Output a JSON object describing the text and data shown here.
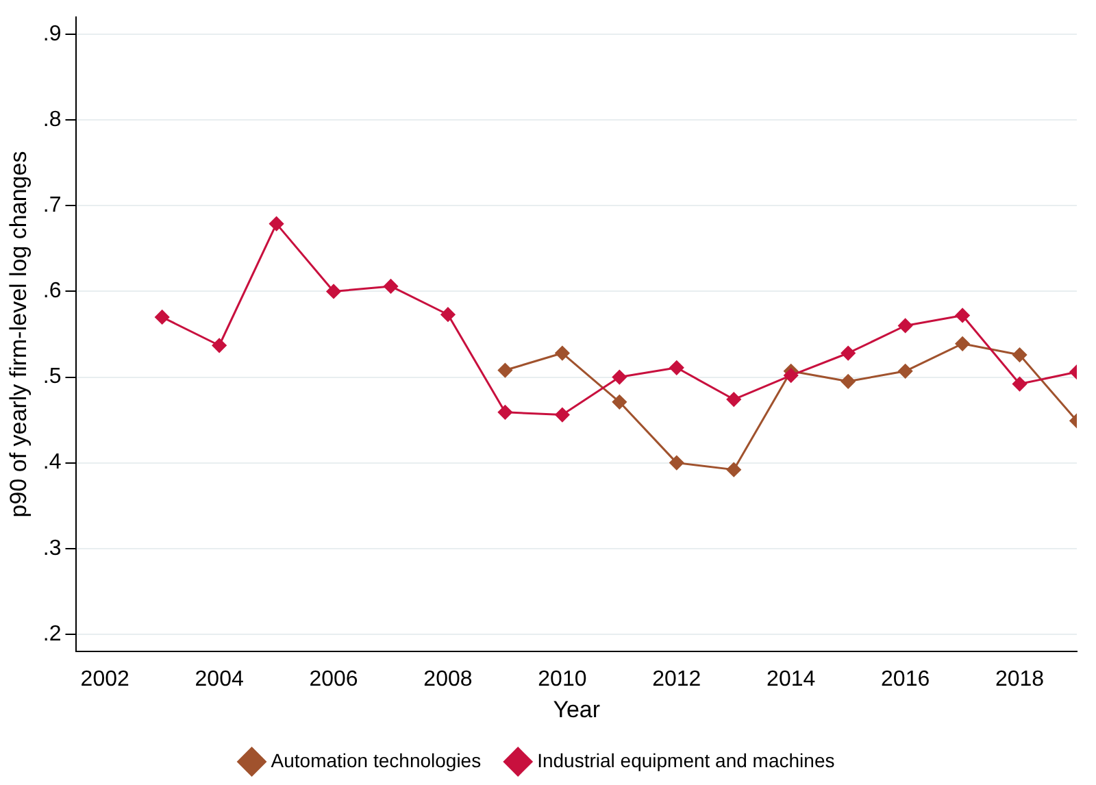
{
  "chart_data": {
    "type": "line",
    "xlabel": "Year",
    "ylabel": "p90 of yearly firm-level log changes",
    "xlim": [
      2001.5,
      2019
    ],
    "xticks": [
      2002,
      2004,
      2006,
      2008,
      2010,
      2012,
      2014,
      2016,
      2018
    ],
    "ylim": [
      0.18,
      0.92
    ],
    "yticks": [
      {
        "value": 0.2,
        "label": ".2"
      },
      {
        "value": 0.3,
        "label": ".3"
      },
      {
        "value": 0.4,
        "label": ".4"
      },
      {
        "value": 0.5,
        "label": ".5"
      },
      {
        "value": 0.6,
        "label": ".6"
      },
      {
        "value": 0.7,
        "label": ".7"
      },
      {
        "value": 0.8,
        "label": ".8"
      },
      {
        "value": 0.9,
        "label": ".9"
      }
    ],
    "grid": "y",
    "legend": "bottom",
    "marker": "diamond",
    "line_style": "solid",
    "series": [
      {
        "name": "Automation technologies",
        "color": "#a0522d",
        "x": [
          2009,
          2010,
          2011,
          2012,
          2013,
          2014,
          2015,
          2016,
          2017,
          2018,
          2019
        ],
        "values": [
          0.508,
          0.528,
          0.471,
          0.4,
          0.392,
          0.507,
          0.495,
          0.507,
          0.539,
          0.526,
          0.449
        ]
      },
      {
        "name": "Industrial equipment and machines",
        "color": "#c8103e",
        "x": [
          2003,
          2004,
          2005,
          2006,
          2007,
          2008,
          2009,
          2010,
          2011,
          2012,
          2013,
          2014,
          2015,
          2016,
          2017,
          2018,
          2019
        ],
        "values": [
          0.57,
          0.537,
          0.679,
          0.6,
          0.606,
          0.573,
          0.459,
          0.456,
          0.5,
          0.511,
          0.474,
          0.502,
          0.528,
          0.56,
          0.572,
          0.492,
          0.506
        ]
      }
    ]
  }
}
